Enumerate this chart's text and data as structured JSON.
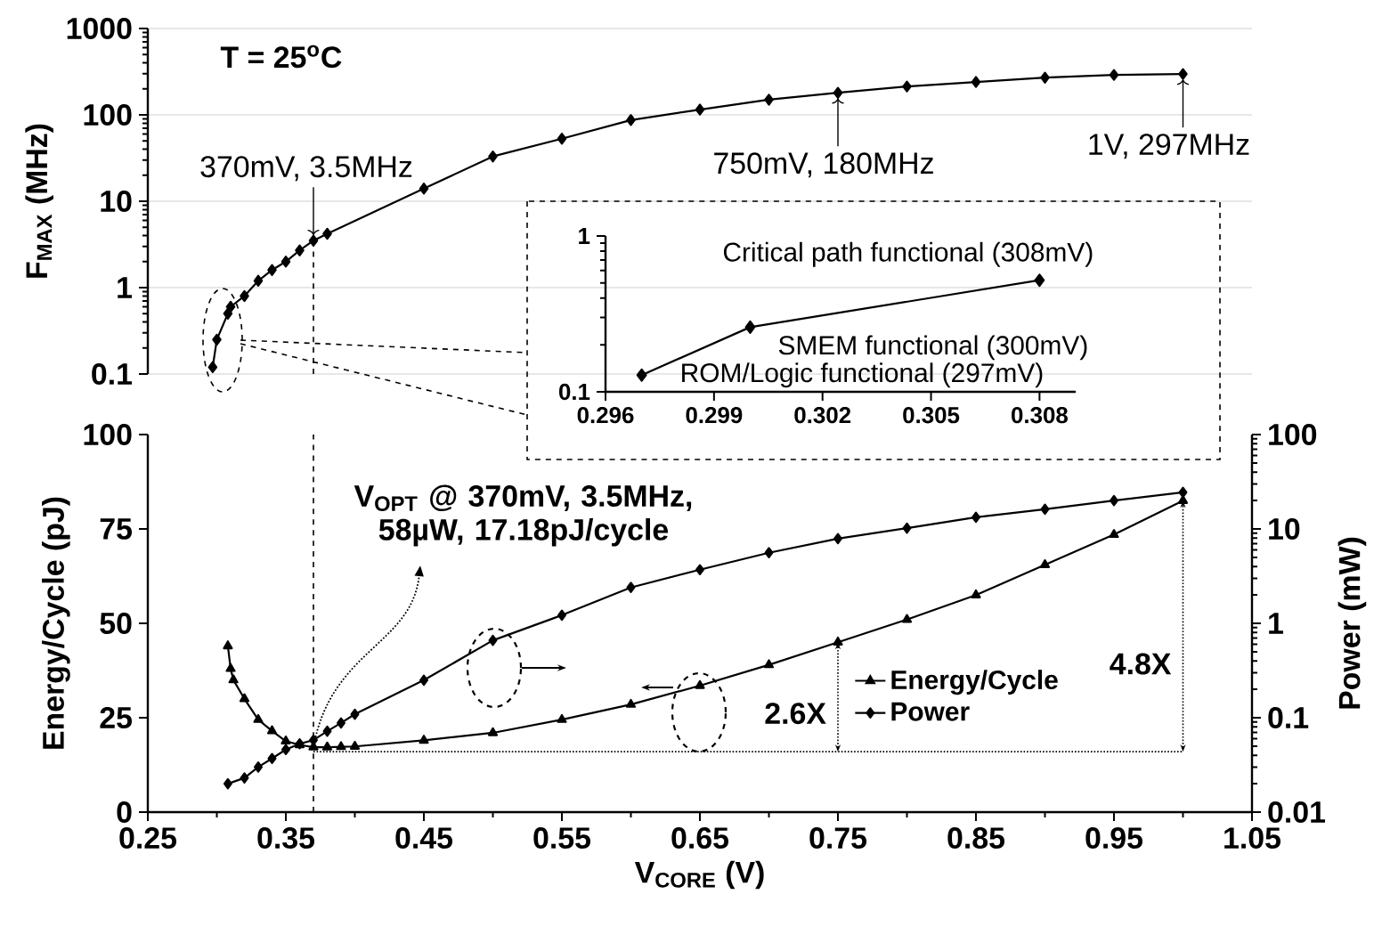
{
  "chart_data": [
    {
      "type": "line",
      "ylabel": "F$_{MAX}$ (MHz)",
      "x": [
        0.297,
        0.3,
        0.308,
        0.31,
        0.32,
        0.33,
        0.34,
        0.35,
        0.36,
        0.37,
        0.38,
        0.45,
        0.5,
        0.55,
        0.6,
        0.65,
        0.7,
        0.75,
        0.8,
        0.85,
        0.9,
        0.95,
        1.0
      ],
      "values": [
        0.12,
        0.25,
        0.5,
        0.6,
        0.8,
        1.2,
        1.6,
        2.0,
        2.7,
        3.5,
        4.2,
        14,
        33,
        53,
        87,
        115,
        150,
        180,
        213,
        240,
        270,
        290,
        297
      ],
      "color": "#000000",
      "xlim": [
        0.25,
        1.05
      ],
      "ylim": [
        0.1,
        1000
      ],
      "yticks": [
        0.1,
        1,
        10,
        100,
        1000
      ],
      "log": "y",
      "grid": "y",
      "marker": "diamond",
      "tick_labels": "y",
      "ref_lines": [
        {
          "axis": "x",
          "value": 0.37,
          "line_style": "dashed"
        }
      ],
      "annotations": [
        "T = 25$^{o}$C",
        {
          "text": "370mV, 3.5MHz",
          "x": 0.37,
          "y": 3.5
        },
        {
          "text": "750mV, 180MHz",
          "x": 0.75,
          "y": 180
        },
        {
          "text": "1V, 297MHz",
          "x": 1.0,
          "y": 297
        }
      ]
    },
    {
      "type": "line",
      "x": [
        0.297,
        0.3,
        0.308
      ],
      "values": [
        0.128,
        0.26,
        0.52
      ],
      "color": "#000000",
      "xlim": [
        0.296,
        0.309
      ],
      "xticks": [
        0.296,
        0.299,
        0.302,
        0.305,
        0.308
      ],
      "ylim": [
        0.1,
        1
      ],
      "yticks": [
        0.1,
        1
      ],
      "log": "y",
      "marker": "diamond",
      "annotations": [
        {
          "text": "Critical path functional (308mV)",
          "x": 0.308,
          "y": 0.52
        },
        {
          "text": "SMEM functional (300mV)",
          "x": 0.3,
          "y": 0.26
        },
        {
          "text": "ROM/Logic functional (297mV)",
          "x": 0.297,
          "y": 0.128
        }
      ]
    },
    {
      "type": "line",
      "xlabel": "V$_{CORE}$ (V)",
      "ylabel": "Energy/Cycle (pJ)",
      "y2label": "Power (mW)",
      "xlim": [
        0.25,
        1.05
      ],
      "xticks": [
        0.25,
        0.35,
        0.45,
        0.55,
        0.65,
        0.75,
        0.85,
        0.95,
        1.05
      ],
      "ylim": [
        0,
        100
      ],
      "yticks": [
        0,
        25,
        50,
        75,
        100
      ],
      "y2lim": [
        0.01,
        100
      ],
      "y2ticks": [
        0.01,
        0.1,
        1,
        10,
        100
      ],
      "log": "y2",
      "legend": "right",
      "series": [
        {
          "name": "Energy/Cycle",
          "color": "#000000",
          "marker": "triangle",
          "x": [
            0.308,
            0.31,
            0.312,
            0.32,
            0.33,
            0.34,
            0.35,
            0.36,
            0.37,
            0.38,
            0.39,
            0.4,
            0.45,
            0.5,
            0.55,
            0.6,
            0.65,
            0.7,
            0.75,
            0.8,
            0.85,
            0.9,
            0.95,
            1.0
          ],
          "values": [
            44,
            38,
            35,
            30,
            24.5,
            21.5,
            18.8,
            17.8,
            17.2,
            17.2,
            17.3,
            17.4,
            19,
            21,
            24.5,
            28.5,
            33.5,
            39,
            45,
            51,
            57.5,
            65.5,
            73.5,
            82.5
          ]
        },
        {
          "name": "Power",
          "color": "#000000",
          "marker": "diamond",
          "axis": "y2",
          "x": [
            0.308,
            0.32,
            0.33,
            0.34,
            0.35,
            0.36,
            0.37,
            0.38,
            0.39,
            0.4,
            0.45,
            0.5,
            0.55,
            0.6,
            0.65,
            0.7,
            0.75,
            0.8,
            0.85,
            0.9,
            0.95,
            1.0
          ],
          "values": [
            0.02,
            0.023,
            0.03,
            0.037,
            0.046,
            0.053,
            0.058,
            0.072,
            0.088,
            0.109,
            0.25,
            0.66,
            1.22,
            2.4,
            3.7,
            5.6,
            7.9,
            10.2,
            13.3,
            16.2,
            20,
            24.4
          ]
        }
      ],
      "ref_lines": [
        {
          "axis": "x",
          "value": 0.37,
          "line_style": "dashed"
        },
        {
          "axis": "y",
          "value": 16,
          "line_style": "dotted"
        }
      ],
      "annotations": [
        {
          "text": "V$_{OPT}$ @ 370mV, 3.5MHz, 58µW, 17.18pJ/cycle",
          "x": 0.37,
          "y": 17.2
        },
        "2.6X",
        "4.8X"
      ]
    }
  ]
}
